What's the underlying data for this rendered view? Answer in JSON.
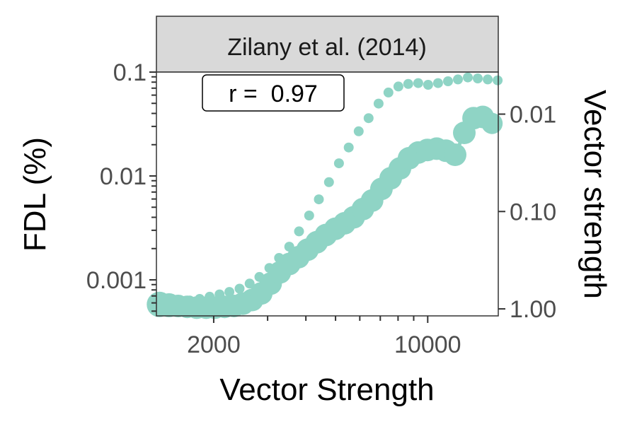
{
  "chart_data": {
    "type": "scatter",
    "facet_title": "Zilany et al. (2014)",
    "xlabel": "Vector Strength",
    "ylabel_left": "FDL (%)",
    "ylabel_right": "Vector strength",
    "x_scale": "log",
    "x_ticks": [
      2000,
      10000
    ],
    "x_tick_labels": [
      "2000",
      "10000"
    ],
    "xlim": [
      1300,
      17000
    ],
    "y_left_scale": "log",
    "y_left_ticks": [
      0.001,
      0.01,
      0.1
    ],
    "y_left_tick_labels": [
      "0.001",
      "0.01",
      "0.1"
    ],
    "y_left_lim": [
      0.00045,
      0.1
    ],
    "y_right_scale": "log-reversed",
    "y_right_ticks": [
      0.01,
      0.1,
      1.0
    ],
    "y_right_tick_labels": [
      "0.01",
      "0.10",
      "1.00"
    ],
    "y_right_lim": [
      0.0037,
      1.18
    ],
    "annotation": "r =  0.97",
    "series": [
      {
        "role": "FDL",
        "axis": "left",
        "style": "large-points-with-line",
        "x": [
          1330,
          1430,
          1530,
          1640,
          1760,
          1890,
          2020,
          2170,
          2330,
          2490,
          2670,
          2860,
          3070,
          3290,
          3530,
          3780,
          4050,
          4340,
          4650,
          4990,
          5350,
          5730,
          6140,
          6580,
          7060,
          7570,
          8110,
          8690,
          9310,
          9980,
          10700,
          11470,
          12290,
          13170,
          14120,
          15130,
          16220
        ],
        "y": [
          0.00058,
          0.00057,
          0.00056,
          0.00055,
          0.00054,
          0.00054,
          0.00054,
          0.00055,
          0.00056,
          0.00059,
          0.00064,
          0.00074,
          0.00092,
          0.00118,
          0.00142,
          0.00165,
          0.00195,
          0.0023,
          0.0027,
          0.0031,
          0.0035,
          0.004,
          0.0048,
          0.0058,
          0.0075,
          0.0095,
          0.0118,
          0.0148,
          0.0168,
          0.0178,
          0.0183,
          0.0175,
          0.016,
          0.026,
          0.036,
          0.037,
          0.032
        ],
        "size": [
          30,
          28,
          26,
          26,
          26,
          26,
          26,
          26,
          26,
          26,
          26,
          26,
          26,
          26,
          26,
          26,
          26,
          26,
          26,
          26,
          26,
          26,
          26,
          26,
          26,
          26,
          26,
          26,
          26,
          26,
          26,
          26,
          26,
          26,
          26,
          26,
          24
        ],
        "color": "#8fd4c5"
      },
      {
        "role": "Vector strength",
        "axis": "right",
        "style": "small-points",
        "x": [
          1330,
          1440,
          1550,
          1670,
          1800,
          1940,
          2090,
          2250,
          2430,
          2620,
          2820,
          3040,
          3270,
          3530,
          3800,
          4100,
          4410,
          4760,
          5130,
          5520,
          5950,
          6410,
          6910,
          7440,
          8020,
          8640,
          9310,
          10030,
          10810,
          11650,
          12550,
          13520,
          14570,
          15700,
          16920
        ],
        "y": [
          0.9,
          0.88,
          0.85,
          0.82,
          0.79,
          0.75,
          0.71,
          0.67,
          0.62,
          0.55,
          0.47,
          0.38,
          0.3,
          0.23,
          0.16,
          0.11,
          0.075,
          0.05,
          0.032,
          0.022,
          0.015,
          0.011,
          0.0078,
          0.006,
          0.0052,
          0.0049,
          0.0048,
          0.005,
          0.0048,
          0.0046,
          0.0044,
          0.0042,
          0.0043,
          0.0044,
          0.0045
        ],
        "size": [
          8,
          8,
          8,
          8,
          8,
          8,
          8,
          8,
          8,
          8,
          8,
          8,
          8,
          8,
          8,
          8,
          8,
          8,
          8,
          8,
          8,
          8,
          8,
          8,
          8,
          8,
          8,
          8,
          8,
          8,
          8,
          8,
          8,
          8,
          8
        ],
        "color": "#8fd4c5"
      }
    ]
  }
}
